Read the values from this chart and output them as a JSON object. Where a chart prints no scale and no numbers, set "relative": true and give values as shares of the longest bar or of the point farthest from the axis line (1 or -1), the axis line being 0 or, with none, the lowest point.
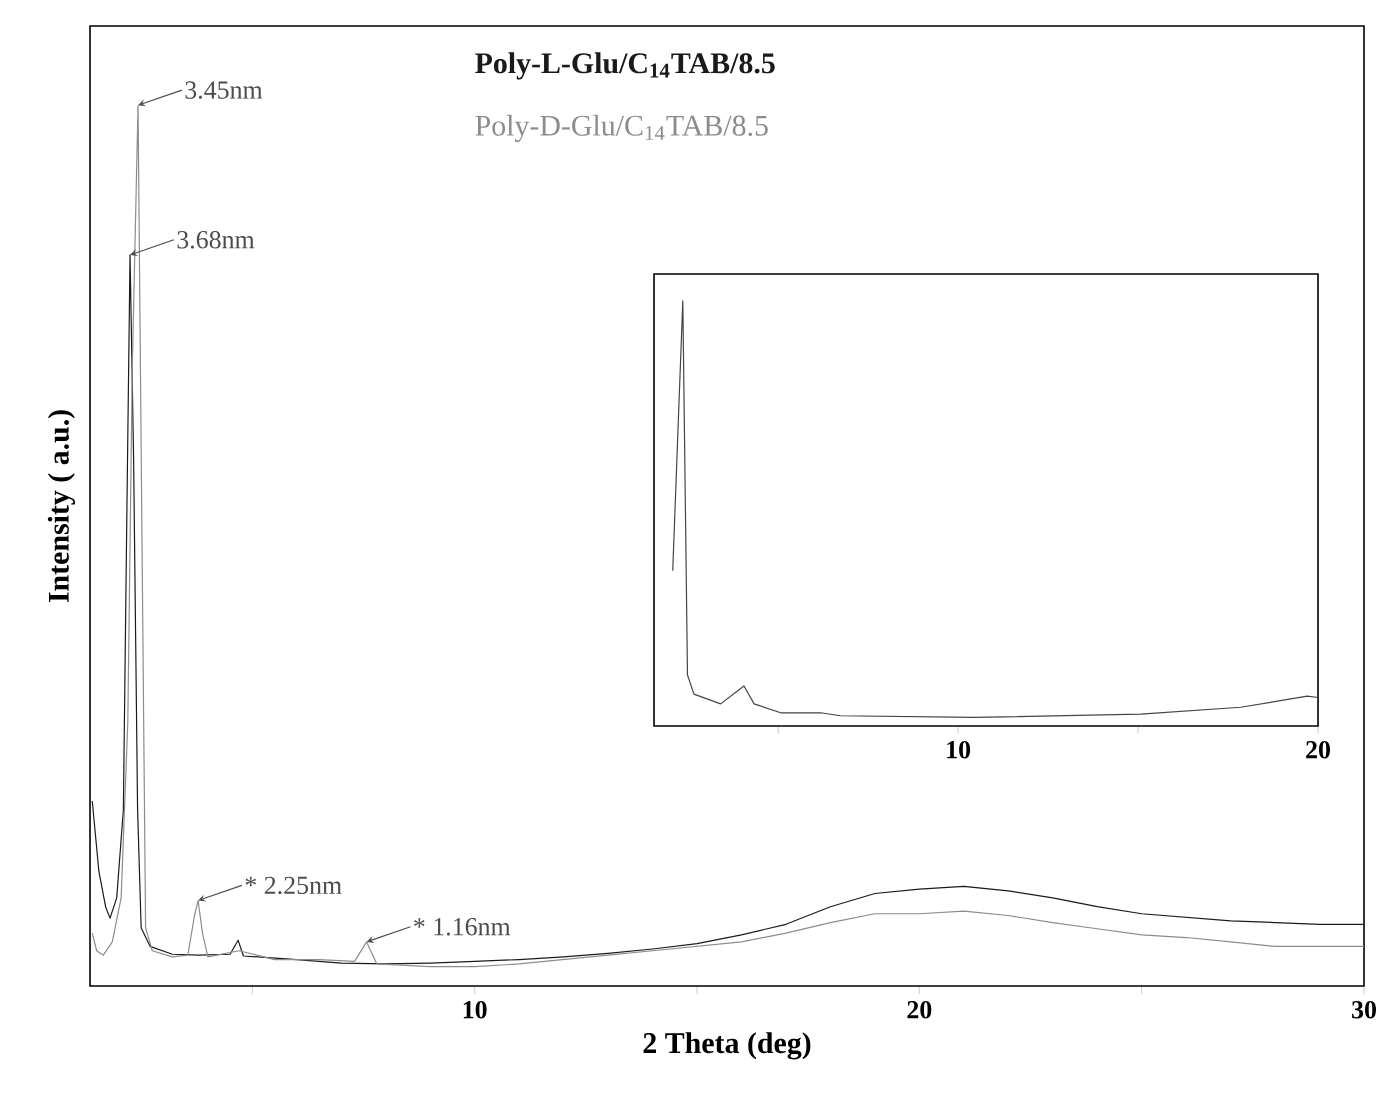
{
  "chart_data": [
    {
      "type": "line",
      "xlabel": "2 Theta (deg)",
      "ylabel": "Intensity ( a.u.)",
      "relative": true,
      "tick_labels": "x",
      "legend": "top",
      "marker": "none",
      "line_style": "solid",
      "xlim": [
        1.35,
        30
      ],
      "xticks": [
        {
          "value": 5,
          "label": null
        },
        10,
        {
          "value": 15,
          "label": null
        },
        20,
        {
          "value": 25,
          "label": null
        },
        30
      ],
      "series": [
        {
          "name": "Poly-L-Glu/C$_{14}$TAB/8.5",
          "color": "#1a1a1a",
          "x": [
            1.4,
            1.55,
            1.7,
            1.8,
            1.95,
            2.1,
            2.17,
            2.25,
            2.33,
            2.42,
            2.5,
            2.7,
            3.2,
            3.8,
            4.5,
            4.68,
            4.8,
            6,
            7,
            8,
            9,
            10,
            11,
            12,
            13,
            14,
            15,
            16,
            17,
            18,
            19,
            20,
            21,
            22,
            23,
            24,
            25,
            26,
            27,
            28,
            29,
            30
          ],
          "values": [
            0.21,
            0.13,
            0.09,
            0.077,
            0.1,
            0.2,
            0.5,
            0.83,
            0.6,
            0.2,
            0.066,
            0.045,
            0.036,
            0.035,
            0.036,
            0.052,
            0.034,
            0.03,
            0.026,
            0.025,
            0.026,
            0.028,
            0.03,
            0.033,
            0.037,
            0.042,
            0.048,
            0.058,
            0.07,
            0.09,
            0.105,
            0.11,
            0.113,
            0.108,
            0.1,
            0.09,
            0.082,
            0.078,
            0.074,
            0.072,
            0.07,
            0.07
          ]
        },
        {
          "name": "Poly-D-Glu/C$_{14}$TAB/8.5",
          "color": "#8c8c8c",
          "x": [
            1.4,
            1.5,
            1.65,
            1.85,
            2.05,
            2.2,
            2.3,
            2.43,
            2.52,
            2.6,
            2.75,
            3.2,
            3.55,
            3.7,
            3.78,
            3.88,
            4.0,
            4.7,
            5.5,
            6.5,
            7.3,
            7.57,
            7.8,
            9,
            10,
            11,
            12,
            13,
            14,
            15,
            16,
            17,
            18,
            19,
            20,
            21,
            22,
            23,
            24,
            25,
            26,
            27,
            28,
            29,
            30
          ],
          "values": [
            0.06,
            0.04,
            0.035,
            0.05,
            0.1,
            0.3,
            0.7,
            1.0,
            0.5,
            0.066,
            0.04,
            0.033,
            0.035,
            0.08,
            0.097,
            0.06,
            0.033,
            0.04,
            0.03,
            0.03,
            0.028,
            0.05,
            0.025,
            0.022,
            0.022,
            0.025,
            0.03,
            0.035,
            0.04,
            0.045,
            0.05,
            0.06,
            0.072,
            0.082,
            0.082,
            0.085,
            0.08,
            0.072,
            0.065,
            0.058,
            0.055,
            0.05,
            0.045,
            0.045,
            0.045
          ]
        }
      ],
      "annotations": [
        {
          "text": "3.45nm",
          "x": 2.43,
          "y": 1.0
        },
        {
          "text": "3.68nm",
          "x": 2.25,
          "y": 0.83
        },
        {
          "text": "* 2.25nm",
          "x": 3.78,
          "y": 0.097
        },
        {
          "text": "* 1.16nm",
          "x": 7.57,
          "y": 0.05
        }
      ]
    },
    {
      "type": "line",
      "relative": true,
      "tick_labels": "x",
      "marker": "none",
      "line_style": "solid",
      "xlim": [
        1.55,
        20
      ],
      "xticks": [
        {
          "value": 5,
          "label": null
        },
        10,
        {
          "value": 15,
          "label": null
        },
        20
      ],
      "series": [
        {
          "color": "#444444",
          "x": [
            2.07,
            2.35,
            2.48,
            2.66,
            3.4,
            4.05,
            4.33,
            5.07,
            6.18,
            6.73,
            10.44,
            15.07,
            17.85,
            19.7,
            20
          ],
          "values": [
            0.365,
            1.0,
            0.12,
            0.075,
            0.052,
            0.094,
            0.052,
            0.031,
            0.031,
            0.024,
            0.02,
            0.028,
            0.044,
            0.07,
            0.067
          ]
        }
      ]
    }
  ]
}
